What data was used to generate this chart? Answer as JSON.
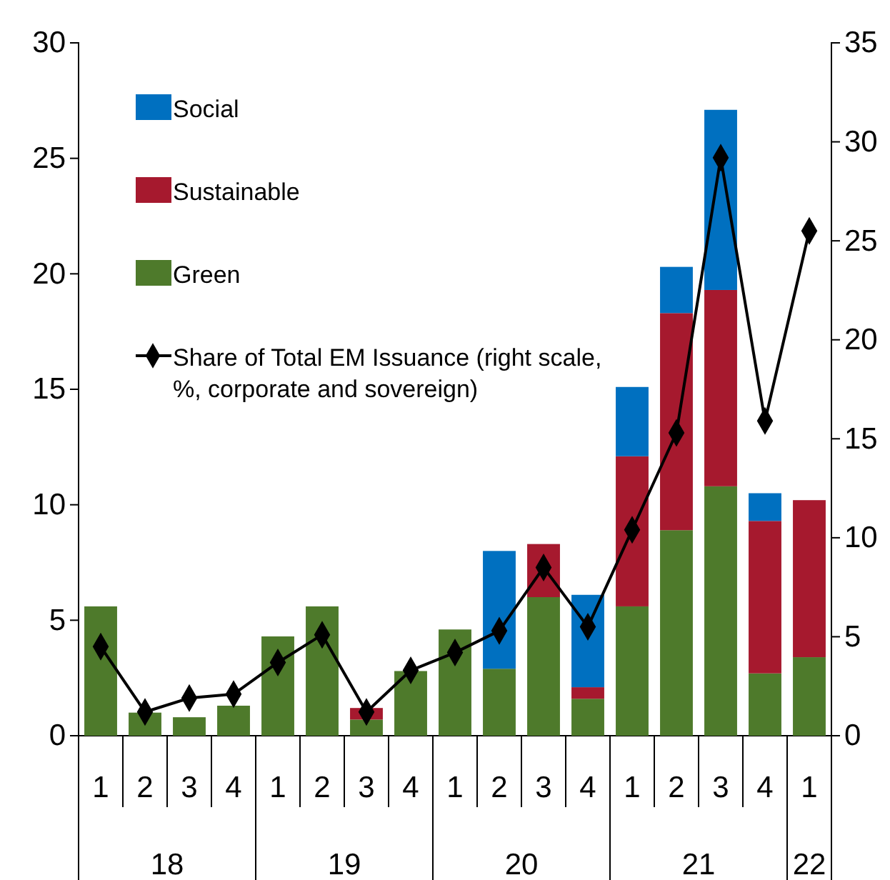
{
  "chart_data": {
    "type": "bar",
    "stacked": true,
    "categories": [
      "1",
      "2",
      "3",
      "4",
      "1",
      "2",
      "3",
      "4",
      "1",
      "2",
      "3",
      "4",
      "1",
      "2",
      "3",
      "4",
      "1"
    ],
    "series": [
      {
        "name": "Green",
        "color": "#4e7a2b",
        "values": [
          5.6,
          1.0,
          0.8,
          1.3,
          4.3,
          5.6,
          0.7,
          2.8,
          4.6,
          2.9,
          6.0,
          1.6,
          5.6,
          8.9,
          10.8,
          2.7,
          3.4
        ]
      },
      {
        "name": "Sustainable",
        "color": "#a6192e",
        "values": [
          null,
          null,
          null,
          null,
          null,
          null,
          0.5,
          null,
          null,
          null,
          2.3,
          0.5,
          6.5,
          9.4,
          8.5,
          6.6,
          6.8
        ]
      },
      {
        "name": "Social",
        "color": "#0070c0",
        "values": [
          null,
          null,
          null,
          null,
          null,
          null,
          null,
          null,
          null,
          5.1,
          null,
          4.0,
          3.0,
          2.0,
          7.8,
          1.2,
          null
        ]
      },
      {
        "name": "Share of Total EM Issuance (right scale, %, corporate and sovereign)",
        "type": "line",
        "axis": "y2",
        "color": "#000000",
        "marker": "diamond",
        "values": [
          4.5,
          1.2,
          1.9,
          2.1,
          3.7,
          5.1,
          1.2,
          3.3,
          4.2,
          5.3,
          8.5,
          5.5,
          10.4,
          15.3,
          29.2,
          15.9,
          25.5
        ]
      }
    ],
    "ylim": [
      0,
      30
    ],
    "yticks": [
      0,
      5,
      10,
      15,
      20,
      25,
      30
    ],
    "y2lim": [
      0,
      35
    ],
    "y2ticks": [
      0,
      5,
      10,
      15,
      20,
      25,
      30,
      35
    ],
    "legend": "top left",
    "grid": false,
    "annotations": [
      "18",
      "19",
      "20",
      "21",
      "22"
    ]
  }
}
